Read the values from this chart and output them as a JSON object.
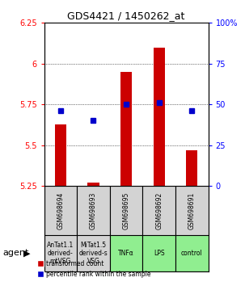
{
  "title": "GDS4421 / 1450262_at",
  "samples": [
    "GSM698694",
    "GSM698693",
    "GSM698695",
    "GSM698692",
    "GSM698691"
  ],
  "agents": [
    "AnTat1.1\nderived-\nmtVSG",
    "MiTat1.5\nderived-s\nVSG",
    "TNFα",
    "LPS",
    "control"
  ],
  "agent_colors": [
    "#d3d3d3",
    "#d3d3d3",
    "#90EE90",
    "#90EE90",
    "#90EE90"
  ],
  "bar_values": [
    5.63,
    5.27,
    5.95,
    6.1,
    5.47
  ],
  "bar_base": 5.25,
  "percentile_values": [
    46,
    40,
    50,
    51,
    46
  ],
  "percentile_scale_min": 0,
  "percentile_scale_max": 100,
  "ylim_min": 5.25,
  "ylim_max": 6.25,
  "yticks": [
    5.25,
    5.5,
    5.75,
    6.0,
    6.25
  ],
  "ytick_labels": [
    "5.25",
    "5.5",
    "5.75",
    "6",
    "6.25"
  ],
  "right_yticks": [
    0,
    25,
    50,
    75,
    100
  ],
  "right_ytick_labels": [
    "0",
    "25",
    "50",
    "75",
    "100%"
  ],
  "bar_color": "#cc0000",
  "dot_color": "#0000cc",
  "legend_label_bar": "transformed count",
  "legend_label_dot": "percentile rank within the sample",
  "agent_label": "agent",
  "background_color": "#ffffff"
}
